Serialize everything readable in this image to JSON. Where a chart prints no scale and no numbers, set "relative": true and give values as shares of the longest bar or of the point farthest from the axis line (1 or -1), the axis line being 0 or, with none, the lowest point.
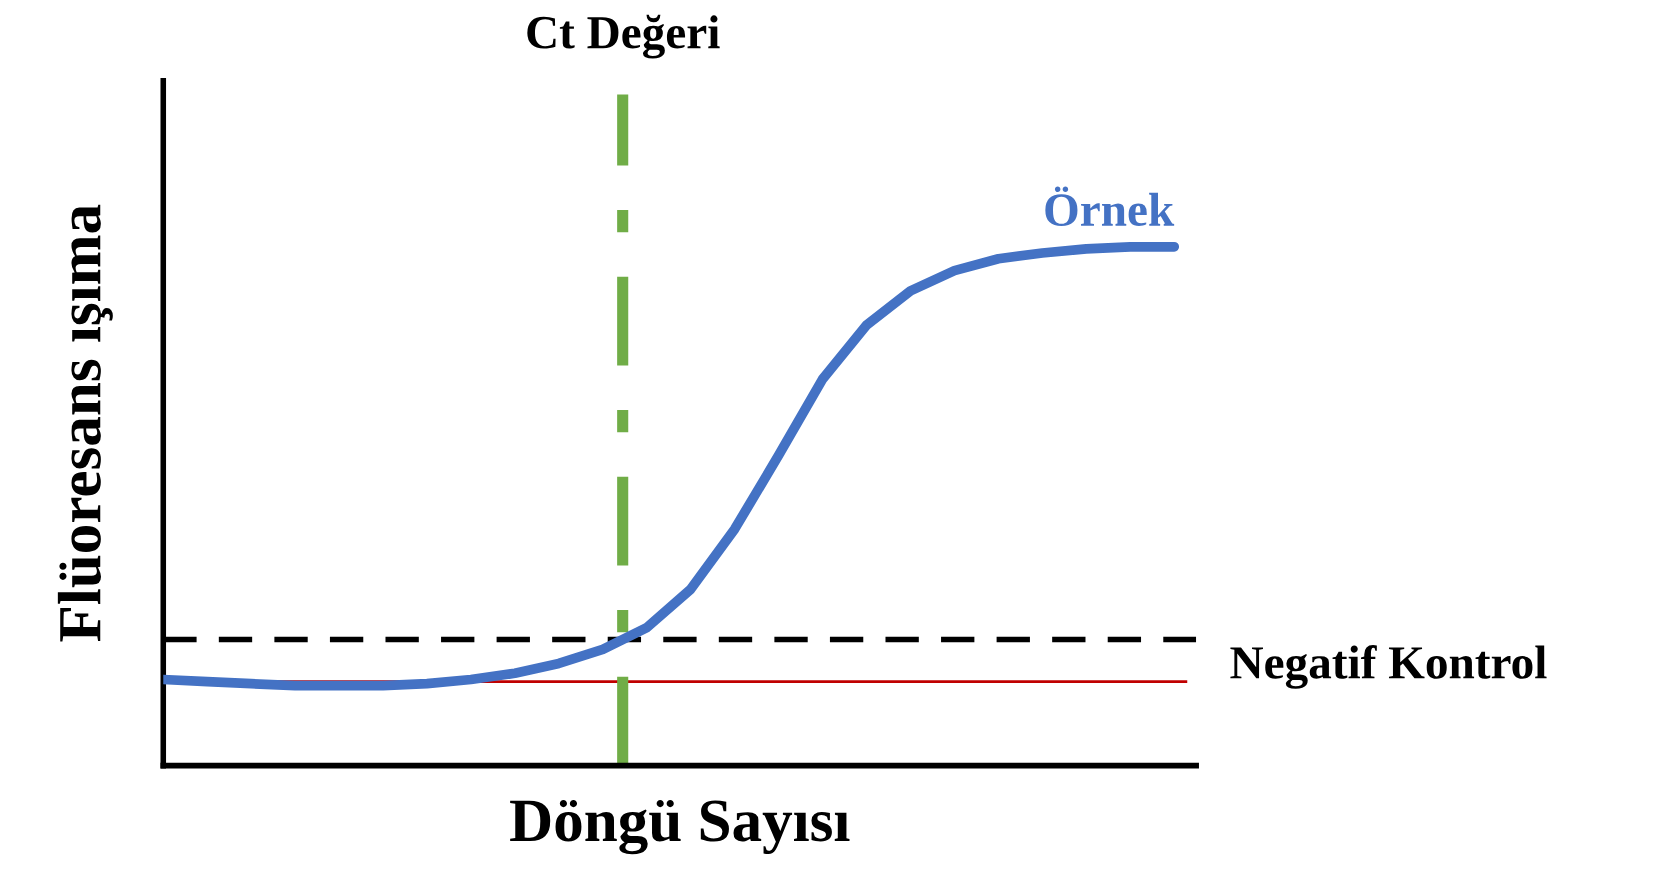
{
  "chart_data": {
    "type": "line",
    "relative": true,
    "xlabel": "Döngü Sayısı",
    "ylabel": "Flüoresans ışıma",
    "categories": [
      null,
      null,
      null,
      null,
      null,
      null,
      null,
      null,
      null,
      null,
      null,
      null,
      null,
      null,
      null,
      null,
      null,
      null,
      null,
      null,
      null,
      null,
      null,
      null
    ],
    "series": [
      {
        "name": "Örnek",
        "color": "#4472c4",
        "values": [
          0.166,
          0.162,
          0.158,
          0.154,
          0.154,
          0.154,
          0.158,
          0.166,
          0.178,
          0.197,
          0.224,
          0.266,
          0.34,
          0.456,
          0.598,
          0.745,
          0.849,
          0.915,
          0.954,
          0.977,
          0.988,
          0.996,
          1,
          1
        ]
      }
    ],
    "ref_lines": [
      {
        "axis": "y",
        "value": 0.243,
        "label": "Negatif Kontrol",
        "color": "#000000",
        "line_style": "dashed"
      },
      {
        "axis": "y",
        "value": 0.162,
        "label": null,
        "color": "#c00000",
        "line_style": "solid"
      }
    ],
    "annotations": [
      "Ct Değeri"
    ],
    "legend": false
  }
}
